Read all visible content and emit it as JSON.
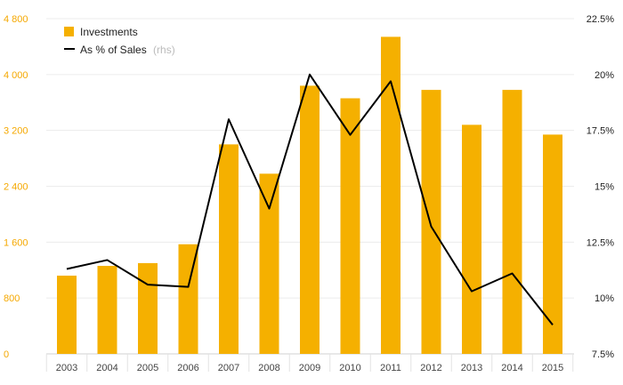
{
  "chart_data": {
    "type": "bar",
    "categories": [
      "2003",
      "2004",
      "2005",
      "2006",
      "2007",
      "2008",
      "2009",
      "2010",
      "2011",
      "2012",
      "2013",
      "2014",
      "2015"
    ],
    "series": [
      {
        "name": "Investments",
        "type": "bar",
        "axis": "left",
        "color": "#f5b000",
        "values": [
          1120,
          1260,
          1300,
          1570,
          3000,
          2580,
          3840,
          3660,
          4540,
          3780,
          3280,
          3780,
          3140
        ]
      },
      {
        "name": "As % of Sales",
        "legend_suffix": "(rhs)",
        "type": "line",
        "axis": "right",
        "color": "#000000",
        "values": [
          11.3,
          11.7,
          10.6,
          10.5,
          18.0,
          14.0,
          20.0,
          17.3,
          19.7,
          13.2,
          10.3,
          11.1,
          8.8
        ]
      }
    ],
    "y_left": {
      "ticks": [
        0,
        800,
        1600,
        2400,
        3200,
        4000,
        4800
      ],
      "tick_labels": [
        "0",
        "800",
        "1 600",
        "2 400",
        "3 200",
        "4 000",
        "4 800"
      ],
      "lim": [
        0,
        4800
      ],
      "color": "#f5a800"
    },
    "y_right": {
      "ticks": [
        7.5,
        10,
        12.5,
        15,
        17.5,
        20,
        22.5
      ],
      "tick_labels": [
        "7.5%",
        "10%",
        "12.5%",
        "15%",
        "17.5%",
        "20%",
        "22.5%"
      ],
      "lim": [
        7.5,
        22.5
      ]
    },
    "grid": true,
    "legend": "top-left"
  }
}
